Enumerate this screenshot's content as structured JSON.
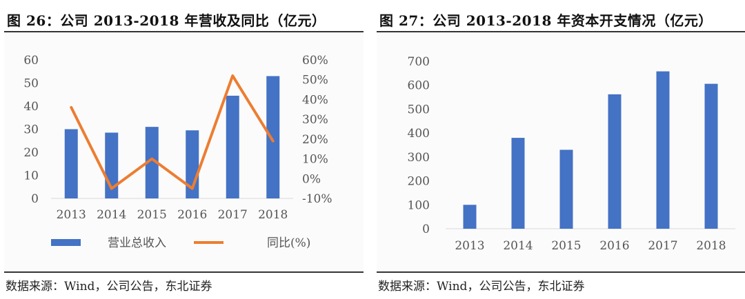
{
  "chart_data": [
    {
      "type": "bar",
      "title": "图 26：公司 2013-2018 年营收及同比（亿元）",
      "source": "数据来源：Wind，公司公告，东北证券",
      "categories": [
        "2013",
        "2014",
        "2015",
        "2016",
        "2017",
        "2018"
      ],
      "series": [
        {
          "name": "营业总收入",
          "type": "bar",
          "axis": "left",
          "values": [
            30,
            28.5,
            31,
            29.5,
            44.5,
            53
          ]
        },
        {
          "name": "同比(%)",
          "type": "line",
          "axis": "right",
          "values": [
            36,
            -5,
            10,
            -5,
            52,
            19
          ]
        }
      ],
      "ylim_left": [
        0,
        60
      ],
      "yticks_left": [
        "0",
        "10",
        "20",
        "30",
        "40",
        "50",
        "60"
      ],
      "ylim_right": [
        -10,
        60
      ],
      "yticks_right": [
        "-10%",
        "0%",
        "10%",
        "20%",
        "30%",
        "40%",
        "50%",
        "60%"
      ],
      "legend_position": "bottom",
      "colors": {
        "bar": "#4472C4",
        "line": "#ED7D31"
      }
    },
    {
      "type": "bar",
      "title": "图 27：公司 2013-2018 年资本开支情况（亿元）",
      "source": "数据来源：Wind，公司公告，东北证券",
      "categories": [
        "2013",
        "2014",
        "2015",
        "2016",
        "2017",
        "2018"
      ],
      "values": [
        100,
        380,
        330,
        562,
        658,
        606
      ],
      "ylim": [
        0,
        700
      ],
      "yticks": [
        "0",
        "100",
        "200",
        "300",
        "400",
        "500",
        "600",
        "700"
      ],
      "colors": {
        "bar": "#4472C4"
      }
    }
  ]
}
